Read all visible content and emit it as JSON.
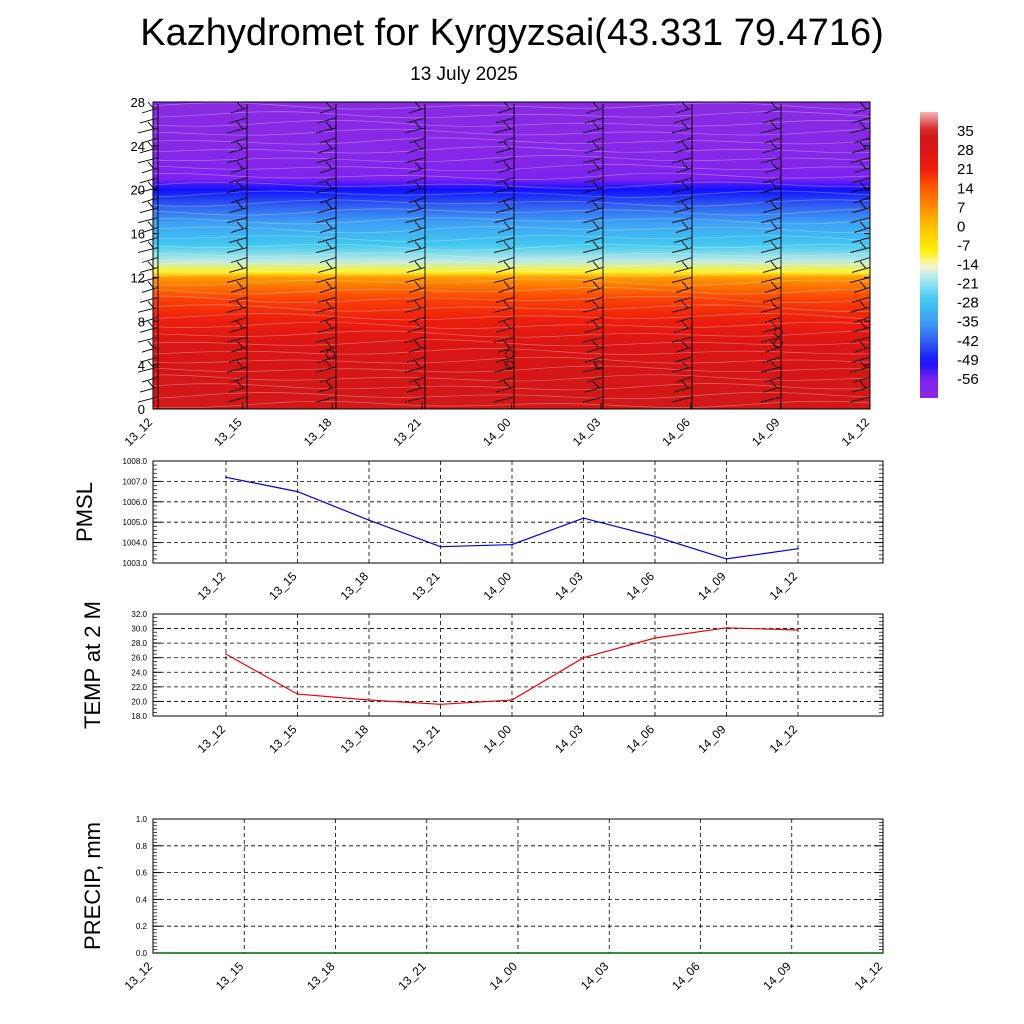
{
  "header": {
    "title": "Kazhydromet for Kyrgyzsai(43.331 79.4716)",
    "subtitle": "13 July 2025"
  },
  "chart_data": [
    {
      "type": "heatmap",
      "title": "Kazhydromet for Kyrgyzsai(43.331 79.4716)",
      "subtitle": "13 July 2025",
      "xlabel": "",
      "ylabel": "",
      "x_tick_labels": [
        "13_12",
        "13_15",
        "13_18",
        "13_21",
        "14_00",
        "14_03",
        "14_06",
        "14_09",
        "14_12"
      ],
      "y_tick_labels": [
        "0",
        "4",
        "8",
        "12",
        "16",
        "20",
        "24",
        "28"
      ],
      "ylim": [
        0,
        28
      ],
      "colorbar_labels": [
        "35",
        "28",
        "21",
        "14",
        "7",
        "0",
        "-7",
        "-14",
        "-21",
        "-28",
        "-35",
        "-42",
        "-49",
        "-56"
      ],
      "colorbar_range": [
        -63,
        42
      ],
      "temperature_profile": [
        {
          "level": 0,
          "value": 35
        },
        {
          "level": 2,
          "value": 33
        },
        {
          "level": 4,
          "value": 30
        },
        {
          "level": 6,
          "value": 27
        },
        {
          "level": 8,
          "value": 22
        },
        {
          "level": 10,
          "value": 17
        },
        {
          "level": 12,
          "value": 5
        },
        {
          "level": 12.5,
          "value": -10
        },
        {
          "level": 13.5,
          "value": -18
        },
        {
          "level": 15,
          "value": -27
        },
        {
          "level": 17,
          "value": -35
        },
        {
          "level": 18.5,
          "value": -42
        },
        {
          "level": 20,
          "value": -50
        },
        {
          "level": 21,
          "value": -56
        },
        {
          "level": 23,
          "value": -60
        },
        {
          "level": 28,
          "value": -63
        }
      ],
      "wind_barbs": true,
      "calm_markers": [
        {
          "x": "13_18",
          "level": 5.0
        },
        {
          "x": "14_00",
          "level": 5.0
        },
        {
          "x": "14_00",
          "level": 4.0
        },
        {
          "x": "14_03",
          "level": 4.0
        },
        {
          "x": "14_09",
          "level": 7.0
        },
        {
          "x": "14_09",
          "level": 6.0
        }
      ]
    },
    {
      "type": "line",
      "title": "",
      "xlabel": "",
      "ylabel": "PMSL",
      "categories": [
        "13_12",
        "13_15",
        "13_18",
        "13_21",
        "14_00",
        "14_03",
        "14_06",
        "14_09",
        "14_12"
      ],
      "series": [
        {
          "values": [
            1007.2,
            1006.5,
            1005.1,
            1003.8,
            1003.9,
            1005.2,
            1004.3,
            1003.2,
            1003.7
          ],
          "color": "#0000ee"
        }
      ],
      "y_tick_labels": [
        "1003.0",
        "1004.0",
        "1005.0",
        "1006.0",
        "1007.0",
        "1008.0"
      ],
      "ylim": [
        1003,
        1008
      ],
      "grid": true
    },
    {
      "type": "line",
      "title": "",
      "xlabel": "",
      "ylabel": "TEMP at 2 M",
      "categories": [
        "13_12",
        "13_15",
        "13_18",
        "13_21",
        "14_00",
        "14_03",
        "14_06",
        "14_09",
        "14_12"
      ],
      "series": [
        {
          "values": [
            26.5,
            21.0,
            20.2,
            19.6,
            20.2,
            26.0,
            28.7,
            30.1,
            29.8
          ],
          "color": "#ee0000"
        }
      ],
      "y_tick_labels": [
        "18.0",
        "20.0",
        "22.0",
        "24.0",
        "26.0",
        "28.0",
        "30.0",
        "32.0"
      ],
      "ylim": [
        18,
        32
      ],
      "grid": true
    },
    {
      "type": "line",
      "title": "",
      "xlabel": "",
      "ylabel": "PRECIP, mm",
      "categories": [
        "13_12",
        "13_15",
        "13_18",
        "13_21",
        "14_00",
        "14_03",
        "14_06",
        "14_09",
        "14_12"
      ],
      "series": [
        {
          "values": [
            0,
            0,
            0,
            0,
            0,
            0,
            0,
            0,
            0
          ],
          "color": "#006400"
        }
      ],
      "y_tick_labels": [
        "0.0",
        "0.2",
        "0.4",
        "0.6",
        "0.8",
        "1.0"
      ],
      "ylim": [
        0,
        1
      ],
      "grid": true
    }
  ]
}
